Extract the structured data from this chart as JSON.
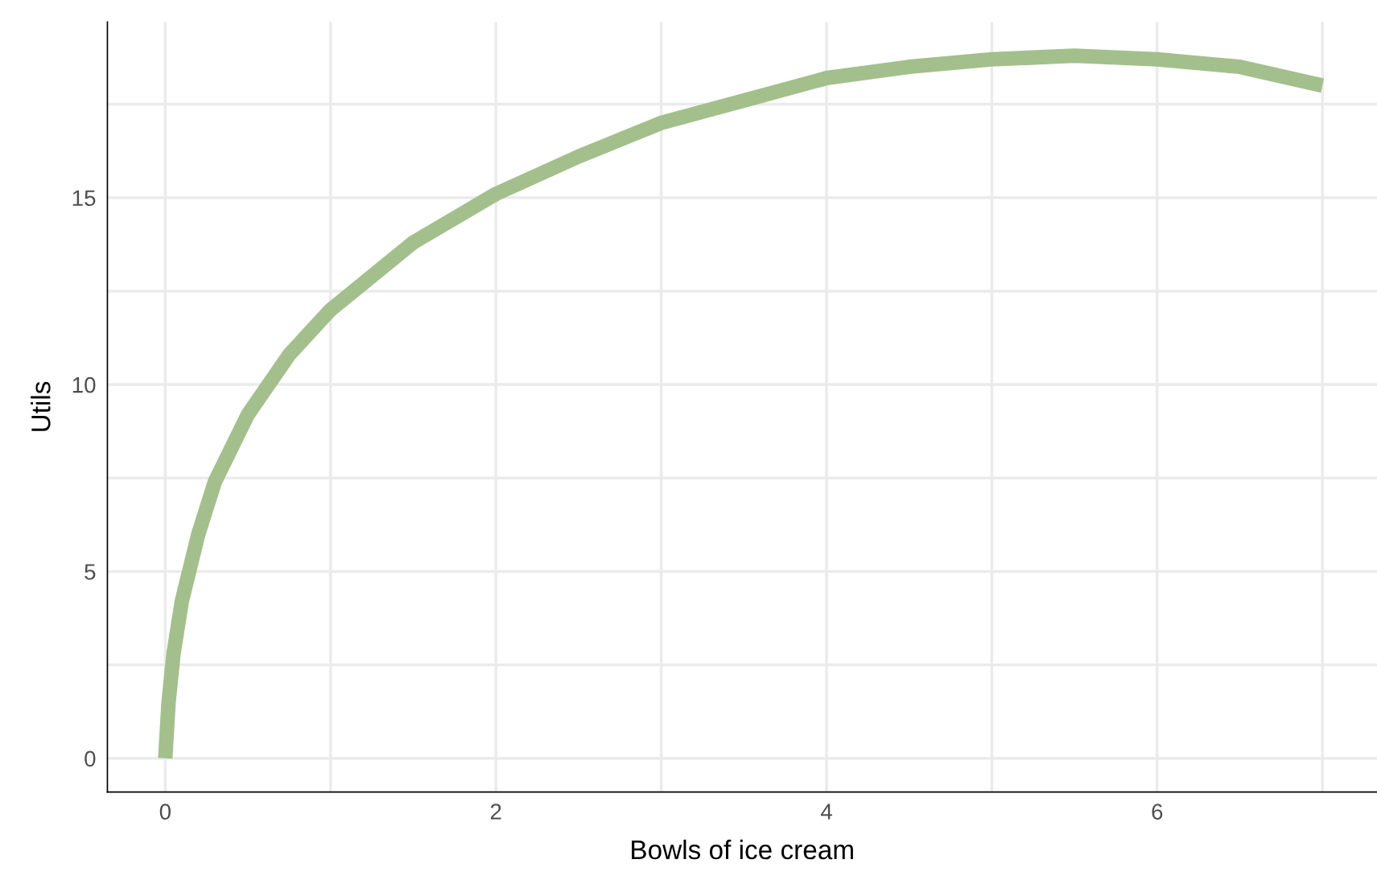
{
  "chart_data": {
    "type": "line",
    "xlabel": "Bowls of ice cream",
    "ylabel": "Utils",
    "x": [
      0,
      0.02,
      0.05,
      0.1,
      0.2,
      0.3,
      0.5,
      0.75,
      1,
      1.5,
      2,
      2.5,
      3,
      3.5,
      4,
      4.5,
      5,
      5.5,
      6,
      6.5,
      7
    ],
    "series": [
      {
        "color": "#a3c08c",
        "values": [
          0,
          1.5,
          2.8,
          4.2,
          6,
          7.4,
          9.2,
          10.8,
          12,
          13.8,
          15.1,
          16.1,
          17,
          17.6,
          18.2,
          18.5,
          18.7,
          18.8,
          18.7,
          18.5,
          18.0
        ]
      }
    ],
    "xlim": [
      -0.35,
      7.33
    ],
    "ylim": [
      -0.9,
      19.7
    ],
    "xticks": [
      0,
      {
        "value": 1,
        "label": null
      },
      2,
      {
        "value": 3,
        "label": null
      },
      4,
      {
        "value": 5,
        "label": null
      },
      6,
      {
        "value": 7,
        "label": null
      }
    ],
    "yticks": [
      0,
      {
        "value": 2.5,
        "label": null
      },
      5,
      {
        "value": 7.5,
        "label": null
      },
      10,
      {
        "value": 12.5,
        "label": null
      },
      15,
      {
        "value": 17.5,
        "label": null
      }
    ],
    "grid": true,
    "line_style": "solid",
    "marker": "none"
  }
}
